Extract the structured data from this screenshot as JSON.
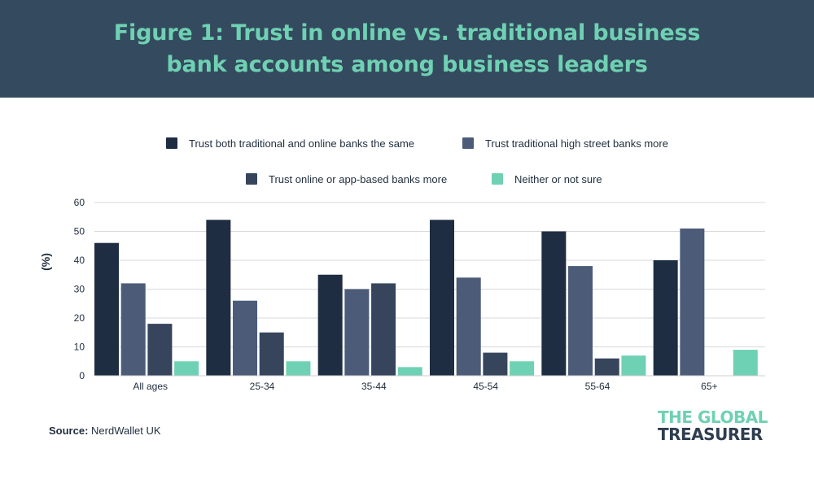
{
  "header": {
    "title": "Figure 1: Trust in online vs. traditional business bank accounts among business leaders"
  },
  "footer": {
    "source_label": "Source:",
    "source_value": "NerdWallet UK",
    "logo_line1": "THE GLOBAL",
    "logo_line2": "TREASURER"
  },
  "colors": {
    "header_bg": "#344a5e",
    "title_text": "#6fd1b3"
  },
  "chart_data": {
    "type": "bar",
    "title": "Figure 1: Trust in online vs. traditional business bank accounts among business leaders",
    "xlabel": "",
    "ylabel": "(%)",
    "ylim": [
      0,
      60
    ],
    "yticks": [
      0,
      10,
      20,
      30,
      40,
      50,
      60
    ],
    "grid": true,
    "legend_position": "top-center",
    "categories": [
      "All ages",
      "25-34",
      "35-44",
      "45-54",
      "55-64",
      "65+"
    ],
    "series": [
      {
        "name": "Trust both traditional and online banks the same",
        "color": "#1e2d42",
        "values": [
          46,
          54,
          35,
          54,
          50,
          40
        ]
      },
      {
        "name": "Trust traditional high street banks more",
        "color": "#4b5b78",
        "values": [
          32,
          26,
          30,
          34,
          38,
          51
        ]
      },
      {
        "name": "Trust online or app-based banks more",
        "color": "#36455c",
        "values": [
          18,
          15,
          32,
          8,
          6,
          0
        ]
      },
      {
        "name": "Neither or not sure",
        "color": "#6fd1b3",
        "values": [
          5,
          5,
          3,
          5,
          7,
          9
        ]
      }
    ]
  }
}
